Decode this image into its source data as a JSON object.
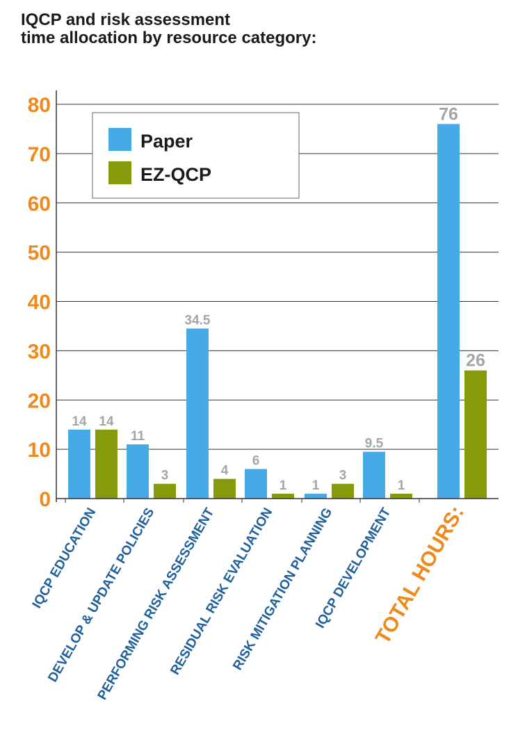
{
  "title_lines": [
    "IQCP and risk assessment",
    "time allocation by resource category:"
  ],
  "colors": {
    "paper": "#45aae6",
    "ezqcp": "#879a0c",
    "axis_tick": "#ee8a1c",
    "category_label": "#1f5f9c",
    "total_label": "#ee8a1c",
    "data_label": "#a5a5a5"
  },
  "chart_data": {
    "type": "bar",
    "categories": [
      "IQCP EDUCATION",
      "DEVELOP & UPDATE POLICIES",
      "PERFORMING RISK ASSESSMENT",
      "RESIDUAL RISK EVALUATION",
      "RISK MITIGATION PLANNING",
      "IQCP DEVELOPMENT",
      "TOTAL HOURS:"
    ],
    "series": [
      {
        "name": "Paper",
        "values": [
          14,
          11,
          34.5,
          6,
          1,
          9.5,
          76
        ]
      },
      {
        "name": "EZ-QCP",
        "values": [
          14,
          3,
          4,
          1,
          3,
          1,
          26
        ]
      }
    ],
    "data_labels": [
      [
        "14",
        "11",
        "34.5",
        "6",
        "1",
        "9.5",
        "76"
      ],
      [
        "14",
        "3",
        "4",
        "1",
        "3",
        "1",
        "26"
      ]
    ],
    "yticks": [
      "0",
      "10",
      "20",
      "30",
      "40",
      "50",
      "60",
      "70",
      "80"
    ],
    "ylim": [
      0,
      80
    ],
    "grid": true,
    "legend_position": "top-left"
  }
}
